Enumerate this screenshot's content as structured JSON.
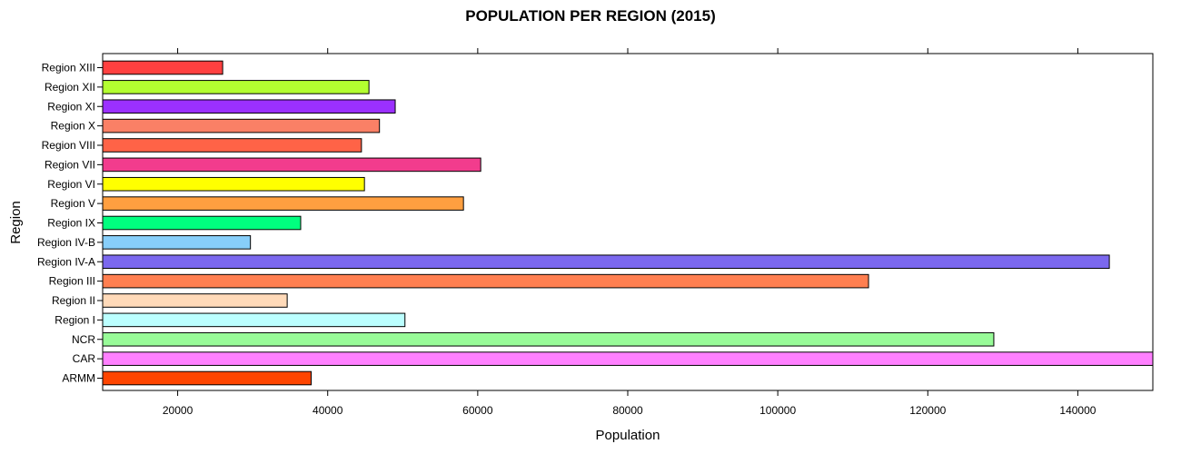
{
  "chart_data": {
    "type": "bar",
    "orientation": "horizontal",
    "title": "POPULATION PER REGION (2015)",
    "xlabel": "Population",
    "ylabel": "Region",
    "xlim": [
      10000,
      150000
    ],
    "xticks": [
      20000,
      40000,
      60000,
      80000,
      100000,
      120000,
      140000
    ],
    "grid": false,
    "categories": [
      "ARMM",
      "CAR",
      "NCR",
      "Region I",
      "Region II",
      "Region III",
      "Region IV-A",
      "Region IV-B",
      "Region IX",
      "Region V",
      "Region VI",
      "Region VII",
      "Region VIII",
      "Region X",
      "Region XI",
      "Region XII",
      "Region XIII"
    ],
    "values": [
      37800,
      150000,
      128800,
      50300,
      34600,
      112100,
      144200,
      29700,
      36400,
      58100,
      44900,
      60400,
      44500,
      46900,
      49000,
      45500,
      26000
    ],
    "colors": [
      "#FF4500",
      "#FF80FF",
      "#98FB98",
      "#BBFFFF",
      "#FFDAB9",
      "#FF7F50",
      "#7B68EE",
      "#87CEFA",
      "#00FF7F",
      "#FF9F40",
      "#FFFF00",
      "#F23C8D",
      "#FF6347",
      "#FA8066",
      "#9B30FF",
      "#B3FF30",
      "#FF4040"
    ]
  }
}
